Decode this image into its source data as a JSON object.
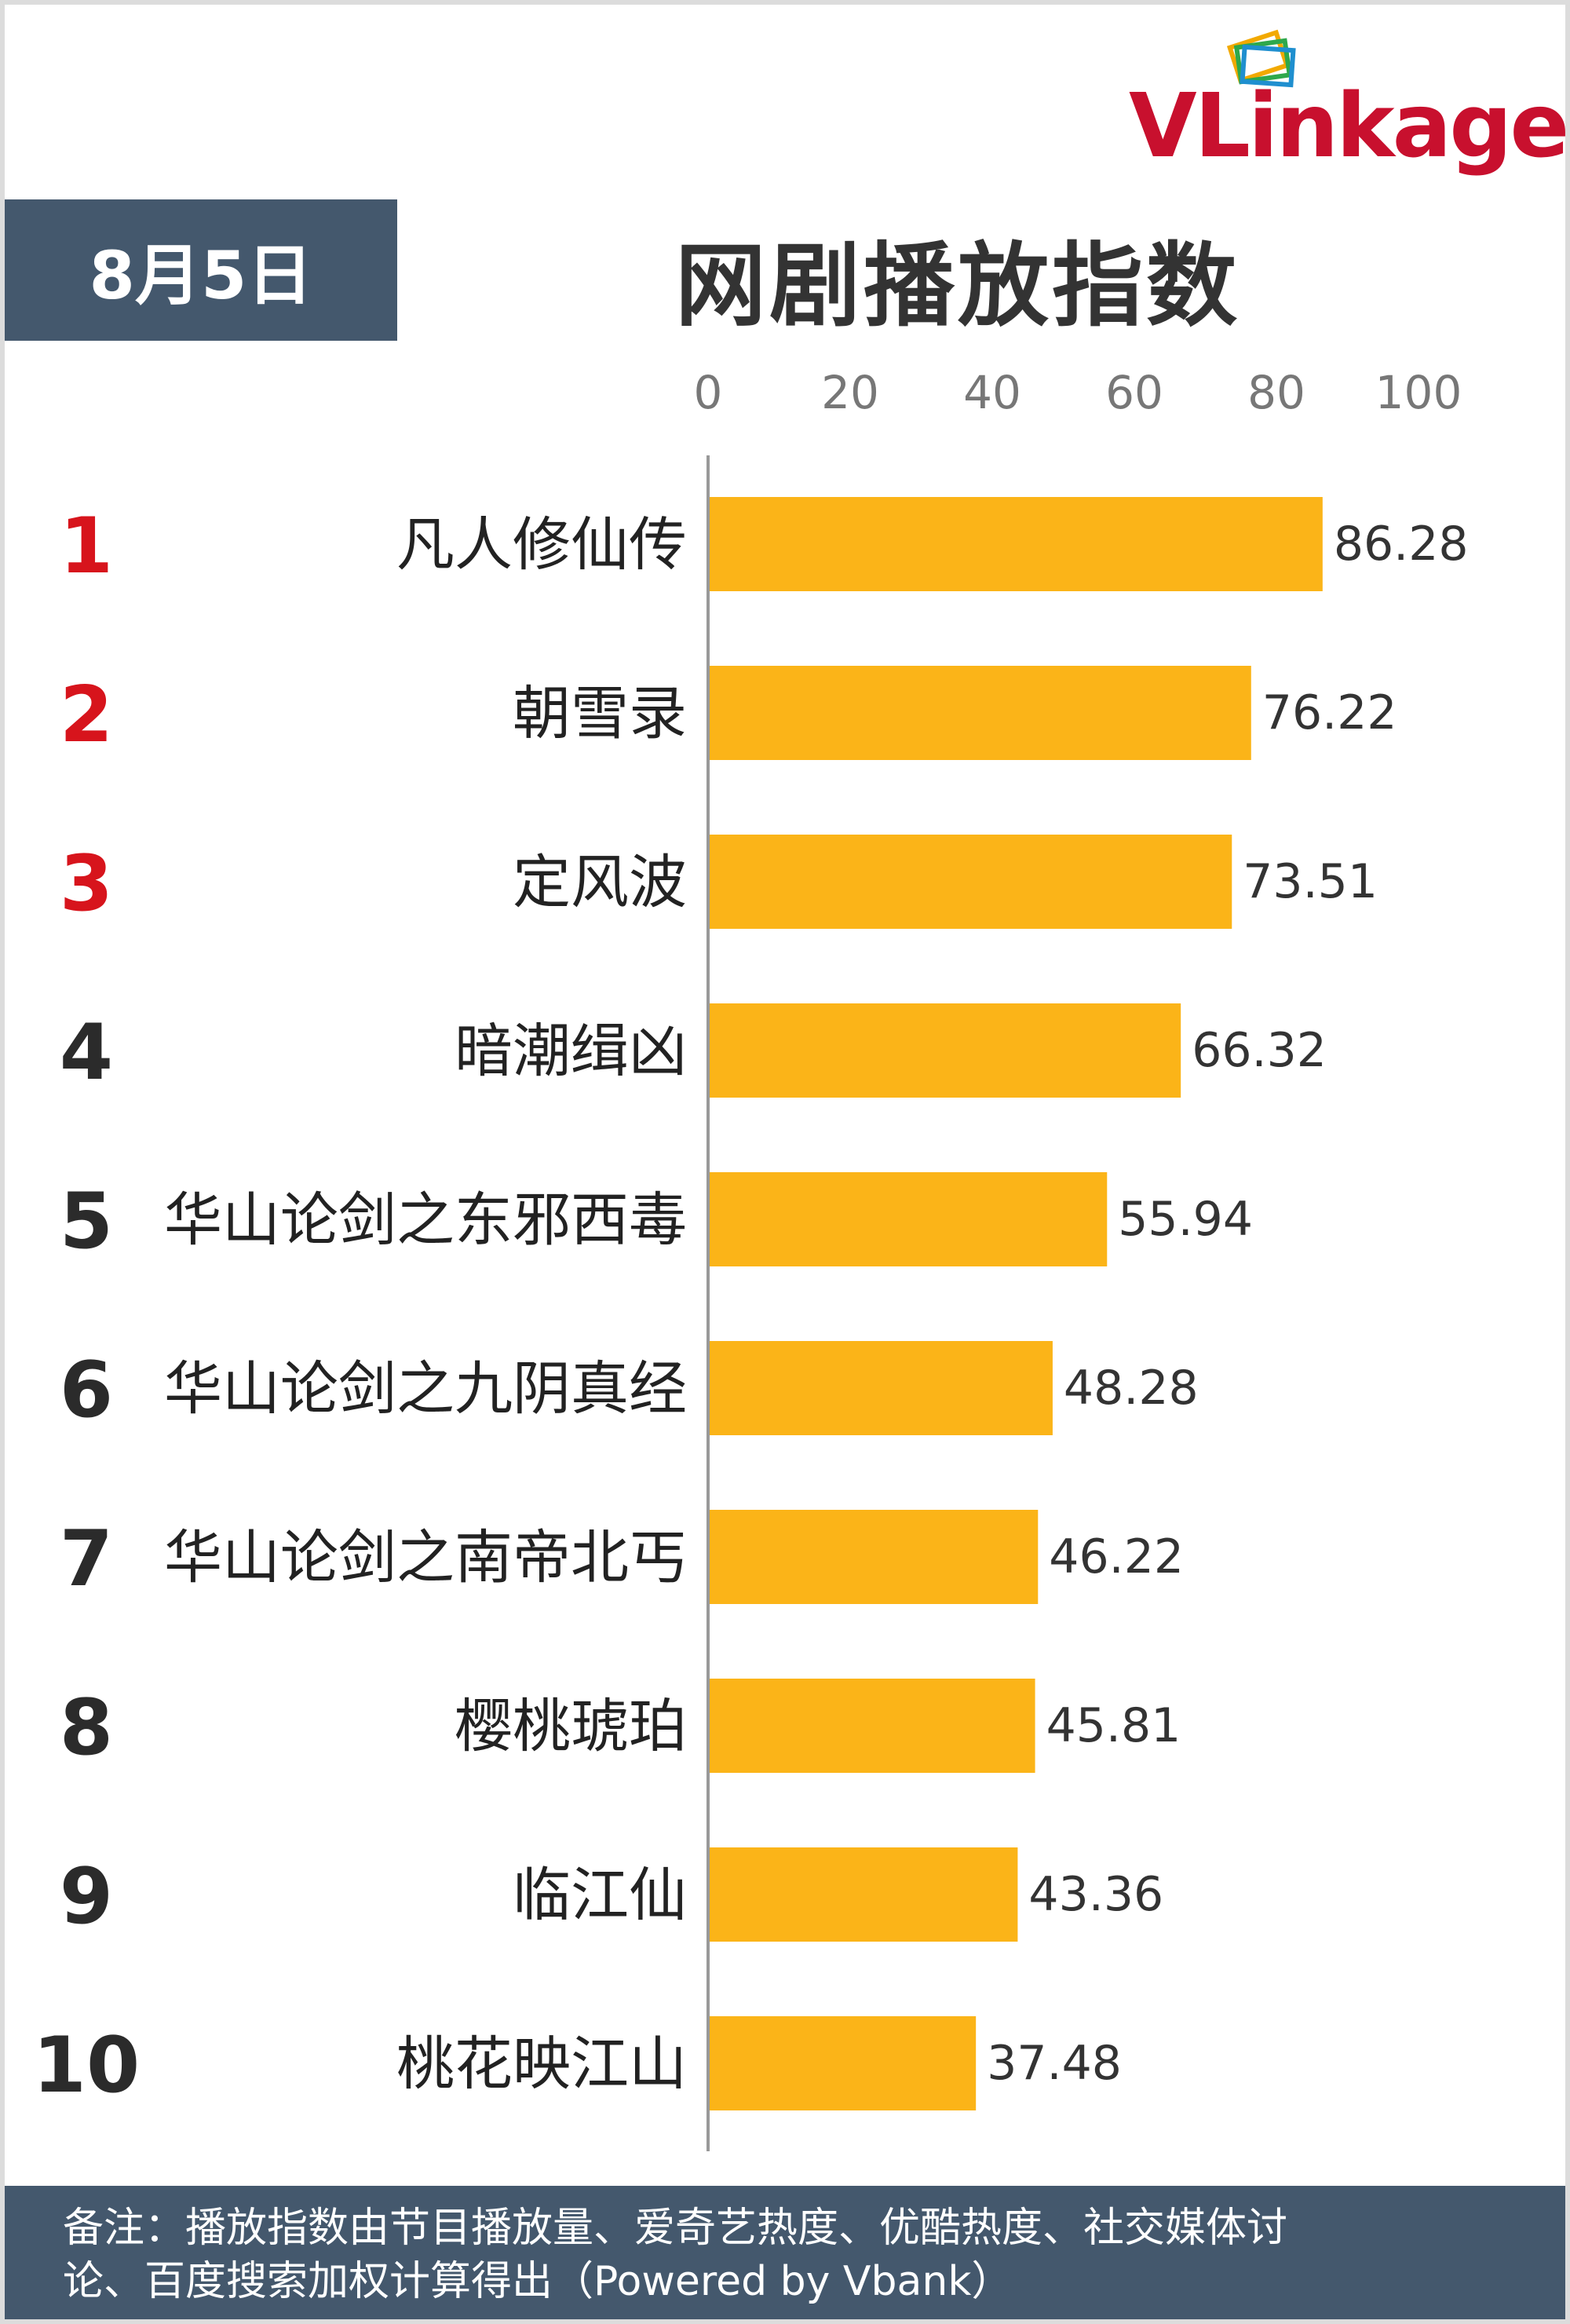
{
  "header": {
    "date": "8月5日",
    "title": "网剧播放指数"
  },
  "brand": {
    "logo_text": "VLinkage",
    "logo_colors": [
      "#c8102e",
      "#f2a900",
      "#2ea84b",
      "#1f8fcf"
    ]
  },
  "colors": {
    "bar": "#FBB418",
    "rank_top3": "#d7141c",
    "rank_other": "#2b2b2b",
    "header_box": "#44586d",
    "axis": "#999999"
  },
  "chart_data": {
    "type": "bar",
    "orientation": "horizontal",
    "title": "网剧播放指数",
    "categories": [
      "凡人修仙传",
      "朝雪录",
      "定风波",
      "暗潮缉凶",
      "华山论剑之东邪西毒",
      "华山论剑之九阴真经",
      "华山论剑之南帝北丐",
      "樱桃琥珀",
      "临江仙",
      "桃花映江山"
    ],
    "ranks": [
      "1",
      "2",
      "3",
      "4",
      "5",
      "6",
      "7",
      "8",
      "9",
      "10"
    ],
    "values": [
      86.28,
      76.22,
      73.51,
      66.32,
      55.94,
      48.28,
      46.22,
      45.81,
      43.36,
      37.48
    ],
    "value_labels": [
      "86.28",
      "76.22",
      "73.51",
      "66.32",
      "55.94",
      "48.28",
      "46.22",
      "45.81",
      "43.36",
      "37.48"
    ],
    "xlim": [
      0,
      100
    ],
    "xticks": [
      "0",
      "20",
      "40",
      "60",
      "80",
      "100"
    ],
    "axis_position": "top",
    "grid": false,
    "legend": "none"
  },
  "footer": {
    "line1": "备注：播放指数由节目播放量、爱奇艺热度、优酷热度、社交媒体讨",
    "line2": "论、百度搜索加权计算得出（Powered by Vbank）"
  }
}
